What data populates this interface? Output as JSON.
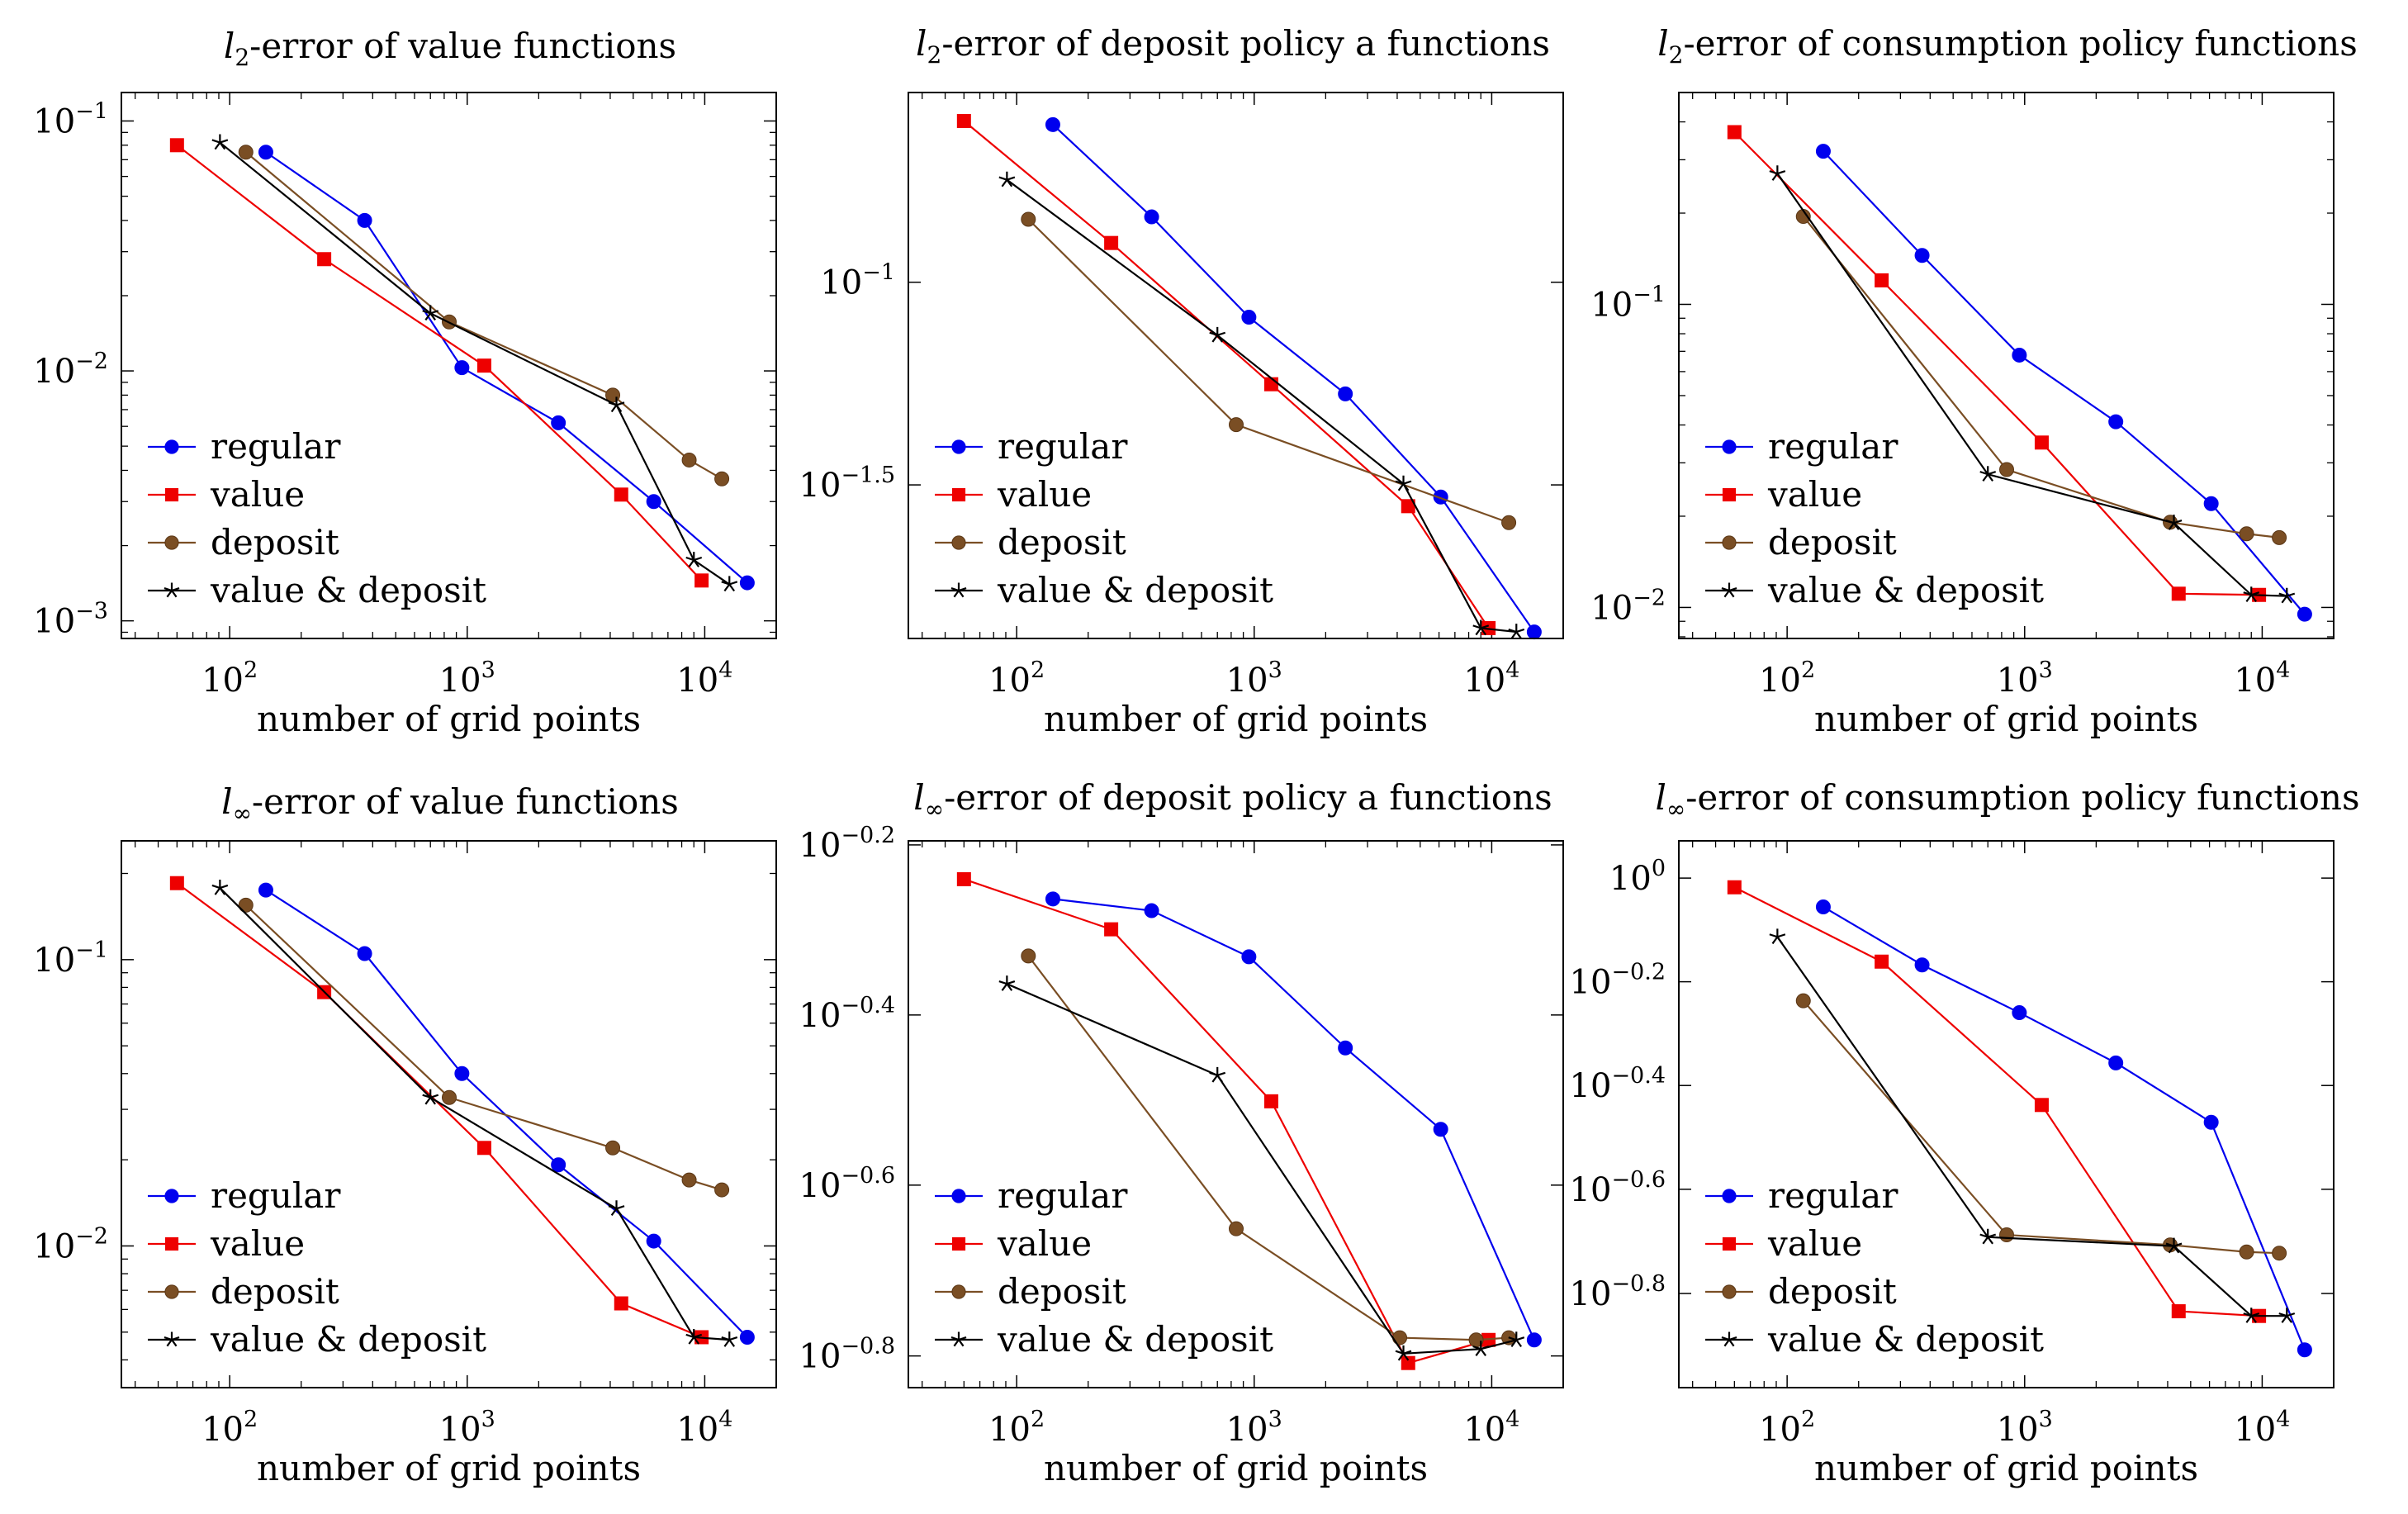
{
  "colors": {
    "regular": "#0000ee",
    "value": "#ee0000",
    "deposit": "#7a4e24",
    "value_deposit": "#000000",
    "axis": "#000000",
    "background": "#ffffff"
  },
  "chart_data": [
    {
      "type": "line",
      "scale": "loglog",
      "title_prefix": "l",
      "title_sub": "2",
      "title_rest": "-error of value functions",
      "xlabel": "number of grid points",
      "ylabel": "",
      "xlim": [
        35,
        20000
      ],
      "ylim": [
        0.00085,
        0.13
      ],
      "xticks": [
        {
          "v": 100,
          "mant": "10",
          "exp": "2"
        },
        {
          "v": 1000,
          "mant": "10",
          "exp": "3"
        },
        {
          "v": 10000,
          "mant": "10",
          "exp": "4"
        }
      ],
      "yticks": [
        {
          "v": 0.001,
          "mant": "10",
          "exp": "−3"
        },
        {
          "v": 0.01,
          "mant": "10",
          "exp": "−2"
        },
        {
          "v": 0.1,
          "mant": "10",
          "exp": "−1"
        }
      ],
      "legend": [
        "regular",
        "value",
        "deposit",
        "value & deposit"
      ],
      "series": [
        {
          "name": "regular",
          "x": [
            142,
            370,
            950,
            2420,
            6100,
            15100
          ],
          "y": [
            0.075,
            0.04,
            0.0103,
            0.0062,
            0.003,
            0.00142
          ]
        },
        {
          "name": "value",
          "x": [
            60,
            250,
            1180,
            4450,
            9700
          ],
          "y": [
            0.08,
            0.028,
            0.0105,
            0.0032,
            0.00145
          ]
        },
        {
          "name": "deposit",
          "x": [
            117,
            840,
            4100,
            8600,
            11800
          ],
          "y": [
            0.075,
            0.0157,
            0.008,
            0.0044,
            0.0037
          ]
        },
        {
          "name": "value & deposit",
          "x": [
            91,
            700,
            4250,
            9000,
            12700
          ],
          "y": [
            0.082,
            0.017,
            0.0073,
            0.00175,
            0.0014
          ]
        }
      ]
    },
    {
      "type": "line",
      "scale": "loglog",
      "title_prefix": "l",
      "title_sub": "2",
      "title_rest": "-error of deposit policy a functions",
      "xlabel": "number of grid points",
      "ylabel": "",
      "xlim": [
        35,
        20000
      ],
      "ylim": [
        0.0132,
        0.294
      ],
      "xticks": [
        {
          "v": 100,
          "mant": "10",
          "exp": "2"
        },
        {
          "v": 1000,
          "mant": "10",
          "exp": "3"
        },
        {
          "v": 10000,
          "mant": "10",
          "exp": "4"
        }
      ],
      "yticks": [
        {
          "v": 0.1,
          "mant": "10",
          "exp": "−1"
        },
        {
          "v": 0.0316,
          "mant": "10",
          "exp": "−1.5"
        }
      ],
      "legend": [
        "regular",
        "value",
        "deposit",
        "value & deposit"
      ],
      "series": [
        {
          "name": "regular",
          "x": [
            142,
            370,
            950,
            2420,
            6100,
            15100
          ],
          "y": [
            0.245,
            0.145,
            0.082,
            0.053,
            0.0295,
            0.0137
          ]
        },
        {
          "name": "value",
          "x": [
            60,
            250,
            1180,
            4450,
            9700
          ],
          "y": [
            0.25,
            0.125,
            0.056,
            0.028,
            0.014
          ]
        },
        {
          "name": "deposit",
          "x": [
            112,
            840,
            11800
          ],
          "y": [
            0.143,
            0.0445,
            0.0255
          ]
        },
        {
          "name": "value & deposit",
          "x": [
            91,
            700,
            4250,
            9000,
            12700
          ],
          "y": [
            0.179,
            0.074,
            0.0318,
            0.014,
            0.0137
          ]
        }
      ]
    },
    {
      "type": "line",
      "scale": "loglog",
      "title_prefix": "l",
      "title_sub": "2",
      "title_rest": "-error of consumption policy functions",
      "xlabel": "number of grid points",
      "ylabel": "",
      "xlim": [
        35,
        20000
      ],
      "ylim": [
        0.0079,
        0.5
      ],
      "xticks": [
        {
          "v": 100,
          "mant": "10",
          "exp": "2"
        },
        {
          "v": 1000,
          "mant": "10",
          "exp": "3"
        },
        {
          "v": 10000,
          "mant": "10",
          "exp": "4"
        }
      ],
      "yticks": [
        {
          "v": 0.01,
          "mant": "10",
          "exp": "−2"
        },
        {
          "v": 0.1,
          "mant": "10",
          "exp": "−1"
        }
      ],
      "legend": [
        "regular",
        "value",
        "deposit",
        "value & deposit"
      ],
      "series": [
        {
          "name": "regular",
          "x": [
            142,
            370,
            950,
            2420,
            6100,
            15100
          ],
          "y": [
            0.32,
            0.145,
            0.068,
            0.041,
            0.022,
            0.0095
          ]
        },
        {
          "name": "value",
          "x": [
            60,
            250,
            1180,
            4450,
            9700
          ],
          "y": [
            0.37,
            0.12,
            0.035,
            0.0111,
            0.011
          ]
        },
        {
          "name": "deposit",
          "x": [
            117,
            840,
            4100,
            8600,
            11800
          ],
          "y": [
            0.195,
            0.0285,
            0.0191,
            0.0175,
            0.017
          ]
        },
        {
          "name": "value & deposit",
          "x": [
            91,
            700,
            4250,
            9000,
            12700
          ],
          "y": [
            0.27,
            0.0275,
            0.019,
            0.011,
            0.0109
          ]
        }
      ]
    },
    {
      "type": "line",
      "scale": "loglog",
      "title_prefix": "l",
      "title_sub": "∞",
      "title_rest": "-error of value functions",
      "xlabel": "number of grid points",
      "ylabel": "",
      "xlim": [
        35,
        20000
      ],
      "ylim": [
        0.0032,
        0.26
      ],
      "xticks": [
        {
          "v": 100,
          "mant": "10",
          "exp": "2"
        },
        {
          "v": 1000,
          "mant": "10",
          "exp": "3"
        },
        {
          "v": 10000,
          "mant": "10",
          "exp": "4"
        }
      ],
      "yticks": [
        {
          "v": 0.01,
          "mant": "10",
          "exp": "−2"
        },
        {
          "v": 0.1,
          "mant": "10",
          "exp": "−1"
        }
      ],
      "legend": [
        "regular",
        "value",
        "deposit",
        "value & deposit"
      ],
      "series": [
        {
          "name": "regular",
          "x": [
            142,
            370,
            950,
            2420,
            6100,
            15100
          ],
          "y": [
            0.175,
            0.105,
            0.04,
            0.0192,
            0.0104,
            0.0048
          ]
        },
        {
          "name": "value",
          "x": [
            60,
            250,
            1180,
            4450,
            9700
          ],
          "y": [
            0.185,
            0.077,
            0.022,
            0.0063,
            0.0048
          ]
        },
        {
          "name": "deposit",
          "x": [
            117,
            840,
            4100,
            8600,
            11800
          ],
          "y": [
            0.155,
            0.033,
            0.022,
            0.017,
            0.0157
          ]
        },
        {
          "name": "value & deposit",
          "x": [
            91,
            700,
            4250,
            9000,
            12700
          ],
          "y": [
            0.178,
            0.033,
            0.0135,
            0.0048,
            0.0047
          ]
        }
      ]
    },
    {
      "type": "line",
      "scale": "loglog",
      "title_prefix": "l",
      "title_sub": "∞",
      "title_rest": "-error of deposit policy a functions",
      "xlabel": "number of grid points",
      "ylabel": "",
      "xlim": [
        35,
        20000
      ],
      "ylim": [
        0.145,
        0.638
      ],
      "xticks": [
        {
          "v": 100,
          "mant": "10",
          "exp": "2"
        },
        {
          "v": 1000,
          "mant": "10",
          "exp": "3"
        },
        {
          "v": 10000,
          "mant": "10",
          "exp": "4"
        }
      ],
      "yticks": [
        {
          "v": 0.631,
          "mant": "10",
          "exp": "−0.2"
        },
        {
          "v": 0.398,
          "mant": "10",
          "exp": "−0.4"
        },
        {
          "v": 0.251,
          "mant": "10",
          "exp": "−0.6"
        },
        {
          "v": 0.158,
          "mant": "10",
          "exp": "−0.8"
        }
      ],
      "legend": [
        "regular",
        "value",
        "deposit",
        "value & deposit"
      ],
      "series": [
        {
          "name": "regular",
          "x": [
            142,
            370,
            950,
            2420,
            6100,
            15100
          ],
          "y": [
            0.545,
            0.528,
            0.466,
            0.364,
            0.292,
            0.165
          ]
        },
        {
          "name": "value",
          "x": [
            60,
            250,
            1180,
            4450,
            9700
          ],
          "y": [
            0.575,
            0.502,
            0.315,
            0.155,
            0.165
          ]
        },
        {
          "name": "deposit",
          "x": [
            112,
            840,
            4100,
            8600,
            11800
          ],
          "y": [
            0.467,
            0.223,
            0.166,
            0.165,
            0.166
          ]
        },
        {
          "name": "value & deposit",
          "x": [
            91,
            700,
            4250,
            9000,
            12700
          ],
          "y": [
            0.433,
            0.338,
            0.159,
            0.161,
            0.165
          ]
        }
      ]
    },
    {
      "type": "line",
      "scale": "loglog",
      "title_prefix": "l",
      "title_sub": "∞",
      "title_rest": "-error of consumption policy functions",
      "xlabel": "number of grid points",
      "ylabel": "",
      "xlim": [
        35,
        20000
      ],
      "ylim": [
        0.104,
        1.18
      ],
      "xticks": [
        {
          "v": 100,
          "mant": "10",
          "exp": "2"
        },
        {
          "v": 1000,
          "mant": "10",
          "exp": "3"
        },
        {
          "v": 10000,
          "mant": "10",
          "exp": "4"
        }
      ],
      "yticks": [
        {
          "v": 1.0,
          "mant": "10",
          "exp": "0"
        },
        {
          "v": 0.631,
          "mant": "10",
          "exp": "−0.2"
        },
        {
          "v": 0.398,
          "mant": "10",
          "exp": "−0.4"
        },
        {
          "v": 0.251,
          "mant": "10",
          "exp": "−0.6"
        },
        {
          "v": 0.158,
          "mant": "10",
          "exp": "−0.8"
        }
      ],
      "legend": [
        "regular",
        "value",
        "deposit",
        "value & deposit"
      ],
      "series": [
        {
          "name": "regular",
          "x": [
            142,
            370,
            950,
            2420,
            6100,
            15100
          ],
          "y": [
            0.88,
            0.68,
            0.55,
            0.44,
            0.338,
            0.123
          ]
        },
        {
          "name": "value",
          "x": [
            60,
            250,
            1180,
            4450,
            9700
          ],
          "y": [
            0.96,
            0.69,
            0.365,
            0.146,
            0.143
          ]
        },
        {
          "name": "deposit",
          "x": [
            117,
            840,
            4100,
            8600,
            11800
          ],
          "y": [
            0.58,
            0.205,
            0.196,
            0.19,
            0.189
          ]
        },
        {
          "name": "value & deposit",
          "x": [
            91,
            700,
            4250,
            9000,
            12700
          ],
          "y": [
            0.77,
            0.203,
            0.195,
            0.143,
            0.143
          ]
        }
      ]
    }
  ]
}
